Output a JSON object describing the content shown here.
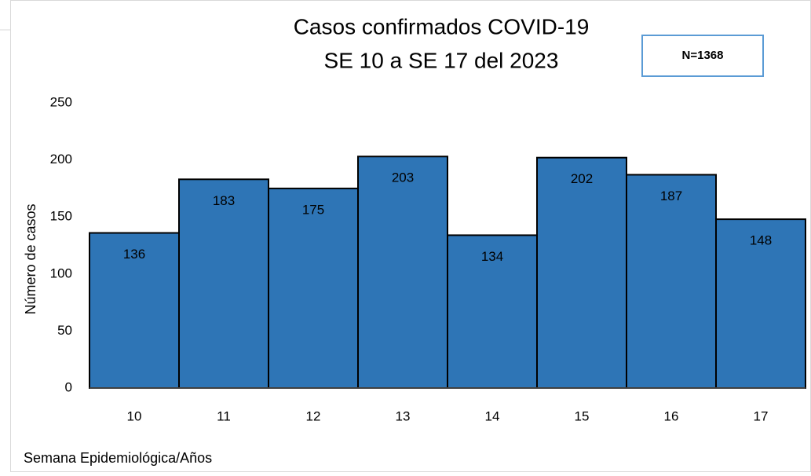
{
  "chart_data": {
    "type": "bar",
    "title": "Casos confirmados COVID-19",
    "subtitle": "SE 10 a SE 17 del 2023",
    "annotation": "N=1368",
    "x_label": "Semana Epidemiológica/Años",
    "y_label": "Número de casos",
    "categories": [
      "10",
      "11",
      "12",
      "13",
      "14",
      "15",
      "16",
      "17"
    ],
    "values": [
      136,
      183,
      175,
      203,
      134,
      202,
      187,
      148
    ],
    "color": "#2e75b6",
    "ylim": [
      0,
      250
    ],
    "yticks": [
      0,
      50,
      100,
      150,
      200,
      250
    ],
    "grid": false,
    "data_labels": true
  }
}
